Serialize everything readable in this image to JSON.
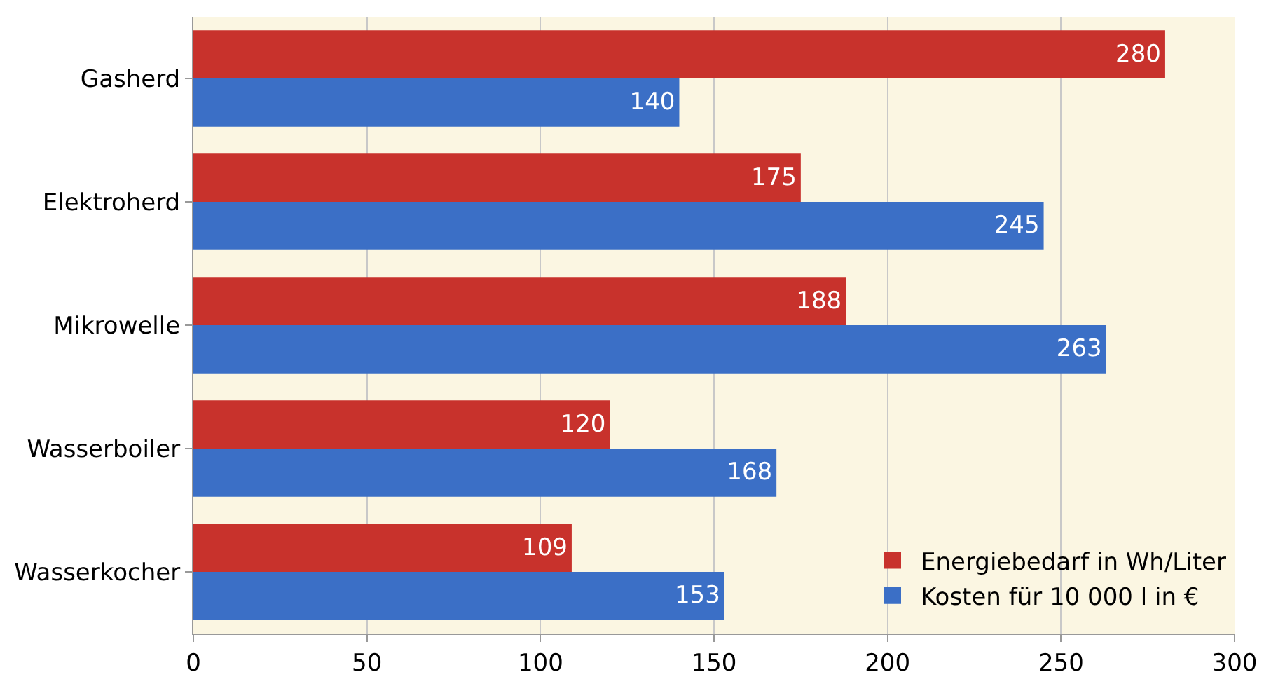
{
  "chart_data": {
    "type": "bar",
    "orientation": "horizontal",
    "categories": [
      "Gasherd",
      "Elektroherd",
      "Mikrowelle",
      "Wasserboiler",
      "Wasserkocher"
    ],
    "series": [
      {
        "name": "Energiebedarf in Wh/Liter",
        "color": "#c8322c",
        "values": [
          280,
          175,
          188,
          120,
          109
        ]
      },
      {
        "name": "Kosten für 10 000 l in €",
        "color": "#3b6fc6",
        "values": [
          140,
          245,
          263,
          168,
          153
        ]
      }
    ],
    "xlim": [
      0,
      300
    ],
    "xticks": [
      0,
      50,
      100,
      150,
      200,
      250,
      300
    ],
    "grid": "x",
    "legend": "bottom right",
    "data_labels": true
  }
}
